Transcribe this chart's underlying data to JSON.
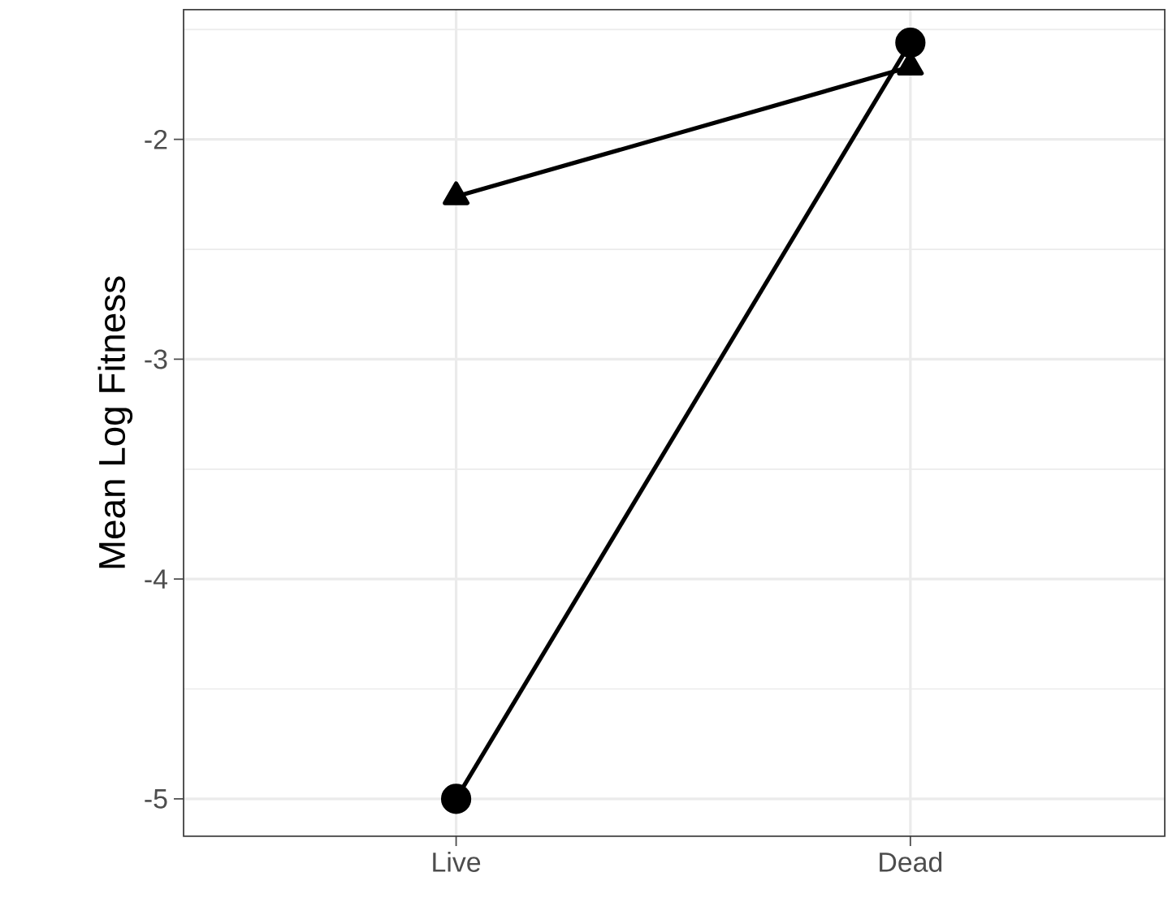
{
  "chart_data": {
    "type": "line",
    "ylabel": "Mean Log Fitness",
    "categories": [
      "Live",
      "Dead"
    ],
    "series": [
      {
        "color": "#000000",
        "marker": "triangle",
        "values": [
          -2.26,
          -1.67
        ]
      },
      {
        "color": "#000000",
        "marker": "circle",
        "values": [
          -5.0,
          -1.56
        ]
      }
    ],
    "ylim": [
      -5.17,
      -1.41
    ],
    "yticks": [
      -2,
      -3,
      -4,
      -5
    ],
    "grid": true,
    "line_style": "solid"
  }
}
